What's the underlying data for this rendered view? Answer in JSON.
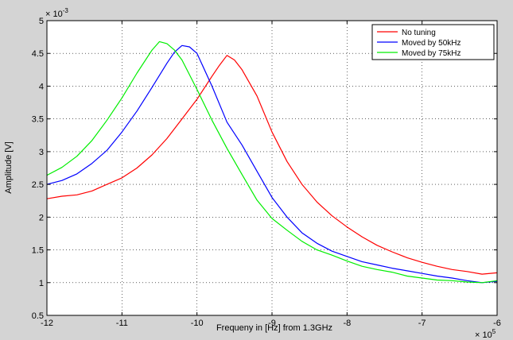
{
  "chart_data": {
    "type": "line",
    "xlabel": "Frequeny in [Hz] from 1.3GHz",
    "ylabel": "Amplitude [V]",
    "x_multiplier_label": "× 10",
    "x_multiplier_exp": "5",
    "y_multiplier_label": "× 10",
    "y_multiplier_exp": "-3",
    "xlim": [
      -12,
      -6
    ],
    "ylim": [
      0.5,
      5
    ],
    "xticks": [
      "-12",
      "-11",
      "-10",
      "-9",
      "-8",
      "-7",
      "-6"
    ],
    "yticks": [
      "0.5",
      "1",
      "1.5",
      "2",
      "2.5",
      "3",
      "3.5",
      "4",
      "4.5",
      "5"
    ],
    "grid": true,
    "legend_position": "top-right",
    "series": [
      {
        "name": "No tuning",
        "color": "#ff0000",
        "x": [
          -12,
          -11.8,
          -11.6,
          -11.4,
          -11.2,
          -11,
          -10.8,
          -10.6,
          -10.4,
          -10.2,
          -10,
          -9.8,
          -9.7,
          -9.6,
          -9.5,
          -9.4,
          -9.2,
          -9,
          -8.8,
          -8.6,
          -8.4,
          -8.2,
          -8,
          -7.8,
          -7.6,
          -7.4,
          -7.2,
          -7,
          -6.8,
          -6.6,
          -6.4,
          -6.2,
          -6
        ],
        "y": [
          2.28,
          2.32,
          2.34,
          2.4,
          2.5,
          2.6,
          2.75,
          2.95,
          3.2,
          3.5,
          3.8,
          4.15,
          4.32,
          4.47,
          4.4,
          4.25,
          3.85,
          3.3,
          2.85,
          2.5,
          2.23,
          2.02,
          1.85,
          1.7,
          1.57,
          1.47,
          1.38,
          1.31,
          1.25,
          1.2,
          1.17,
          1.13,
          1.15
        ]
      },
      {
        "name": "Moved by 50kHz",
        "color": "#0000ff",
        "x": [
          -12,
          -11.8,
          -11.6,
          -11.4,
          -11.2,
          -11,
          -10.8,
          -10.6,
          -10.4,
          -10.3,
          -10.2,
          -10.1,
          -10,
          -9.8,
          -9.6,
          -9.4,
          -9.2,
          -9,
          -8.8,
          -8.6,
          -8.4,
          -8.2,
          -8,
          -7.8,
          -7.6,
          -7.4,
          -7.2,
          -7,
          -6.8,
          -6.6,
          -6.4,
          -6.2,
          -6
        ],
        "y": [
          2.5,
          2.56,
          2.66,
          2.82,
          3.02,
          3.3,
          3.62,
          3.98,
          4.35,
          4.52,
          4.62,
          4.6,
          4.5,
          4.0,
          3.45,
          3.1,
          2.7,
          2.3,
          2.0,
          1.76,
          1.6,
          1.48,
          1.4,
          1.32,
          1.27,
          1.22,
          1.18,
          1.14,
          1.1,
          1.07,
          1.03,
          1.0,
          1.02
        ]
      },
      {
        "name": "Moved by 75kHz",
        "color": "#00ee00",
        "x": [
          -12,
          -11.8,
          -11.6,
          -11.4,
          -11.2,
          -11,
          -10.8,
          -10.6,
          -10.5,
          -10.4,
          -10.3,
          -10.2,
          -10,
          -9.8,
          -9.6,
          -9.4,
          -9.2,
          -9,
          -8.8,
          -8.6,
          -8.4,
          -8.2,
          -8,
          -7.8,
          -7.6,
          -7.4,
          -7.2,
          -7,
          -6.8,
          -6.6,
          -6.4,
          -6.2,
          -6
        ],
        "y": [
          2.64,
          2.76,
          2.93,
          3.17,
          3.48,
          3.82,
          4.2,
          4.55,
          4.68,
          4.65,
          4.55,
          4.4,
          3.95,
          3.48,
          3.05,
          2.65,
          2.26,
          1.98,
          1.8,
          1.63,
          1.5,
          1.42,
          1.33,
          1.25,
          1.2,
          1.16,
          1.1,
          1.07,
          1.04,
          1.03,
          1.01,
          1.0,
          1.03
        ]
      }
    ]
  }
}
